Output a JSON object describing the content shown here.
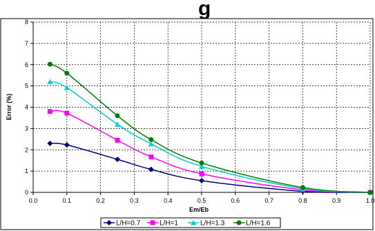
{
  "chart_data": {
    "type": "line",
    "title_fragment": "g",
    "xlabel": "Em/Eb",
    "ylabel": "Error (%)",
    "xlim": [
      0.0,
      1.0
    ],
    "ylim": [
      0,
      8
    ],
    "xticks": [
      "0.0",
      "0.1",
      "0.2",
      "0.3",
      "0.4",
      "0.5",
      "0.6",
      "0.7",
      "0.8",
      "0.9",
      "1.0"
    ],
    "yticks": [
      "0",
      "1",
      "2",
      "3",
      "4",
      "5",
      "6",
      "7",
      "8"
    ],
    "grid": "dashed",
    "legend_position": "bottom",
    "series": [
      {
        "name": "L/H=0.7",
        "color": "#00007f",
        "marker": "diamond",
        "x": [
          0.05,
          0.1,
          0.25,
          0.35,
          0.5,
          0.8,
          1.0
        ],
        "y": [
          2.3,
          2.23,
          1.55,
          1.08,
          0.55,
          0.05,
          0.0
        ]
      },
      {
        "name": "L/H=1",
        "color": "#ff00ff",
        "marker": "square",
        "x": [
          0.05,
          0.1,
          0.25,
          0.35,
          0.5,
          0.8,
          1.0
        ],
        "y": [
          3.8,
          3.72,
          2.45,
          1.67,
          0.87,
          0.12,
          0.0
        ]
      },
      {
        "name": "L/H=1.3",
        "color": "#00ced1",
        "marker": "triangle",
        "x": [
          0.05,
          0.1,
          0.25,
          0.35,
          0.5,
          0.8,
          1.0
        ],
        "y": [
          5.2,
          4.92,
          3.2,
          2.28,
          1.22,
          0.18,
          0.0
        ]
      },
      {
        "name": "L/H=1.6",
        "color": "#008000",
        "marker": "circle",
        "x": [
          0.05,
          0.1,
          0.25,
          0.35,
          0.5,
          0.8,
          1.0
        ],
        "y": [
          6.02,
          5.6,
          3.6,
          2.48,
          1.38,
          0.23,
          0.0
        ]
      }
    ]
  }
}
